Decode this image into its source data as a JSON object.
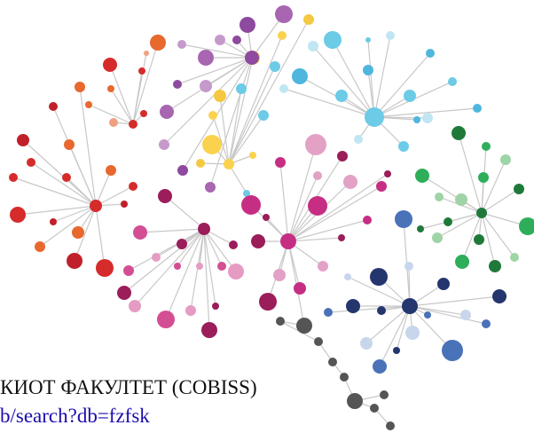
{
  "heading": "КИОТ ФАКУЛТЕТ (COBISS)",
  "link": "b/search?db=fzfsk"
}
